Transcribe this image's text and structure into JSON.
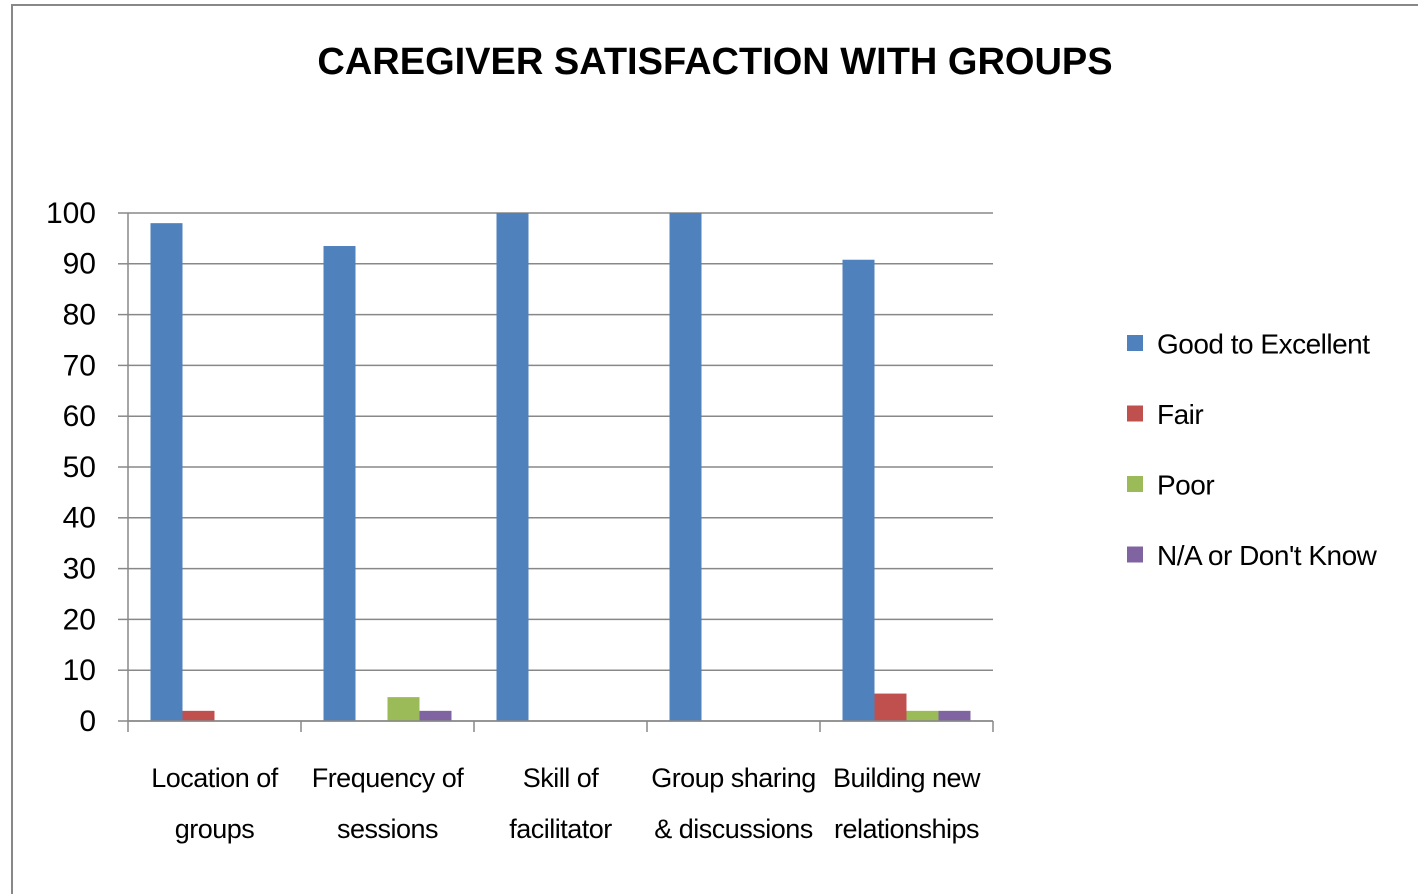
{
  "chart_data": {
    "type": "bar",
    "title": "CAREGIVER SATISFACTION WITH GROUPS",
    "categories": [
      "Location of groups",
      "Frequency of sessions",
      "Skill of facilitator",
      "Group sharing & discussions",
      "Building new relationships"
    ],
    "series": [
      {
        "name": "Good to Excellent",
        "color": "#4f81bd",
        "values": [
          98,
          93.5,
          100,
          100,
          90.8
        ]
      },
      {
        "name": "Fair",
        "color": "#c0504d",
        "values": [
          2,
          0,
          0,
          0,
          5.4
        ]
      },
      {
        "name": "Poor",
        "color": "#9bbb59",
        "values": [
          0,
          4.7,
          0,
          0,
          2
        ]
      },
      {
        "name": "N/A or Don't Know",
        "color": "#8064a2",
        "values": [
          0,
          2,
          0,
          0,
          2
        ]
      }
    ],
    "ylim": [
      0,
      100
    ],
    "yticks": [
      0,
      10,
      20,
      30,
      40,
      50,
      60,
      70,
      80,
      90,
      100
    ],
    "grid": true,
    "legend": "right"
  }
}
